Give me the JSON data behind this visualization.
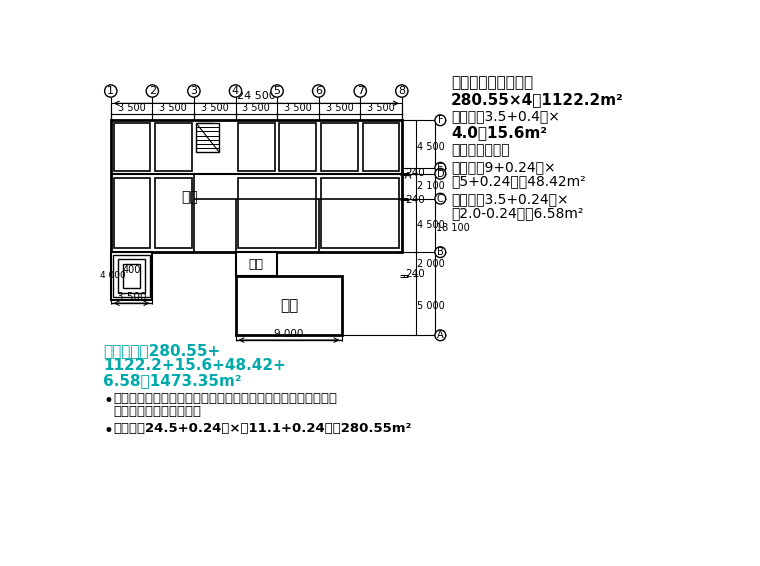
{
  "bg_color": "#ffffff",
  "fig_width": 7.6,
  "fig_height": 5.66,
  "dpi": 100,
  "right_text": {
    "line1": "二～五层建筑面积＝",
    "line2": "280.55×4＝1122.2m²",
    "line3": "雨蓬＝（3.5+0.4）×",
    "line4": "4.0＝15.6m²",
    "line5": "砖混结构部分：",
    "line6": "附楼＝（9+0.24）×",
    "line7": "（5+0.24）＝48.42m²",
    "line8": "通廊＝（3.5+0.24）×",
    "line9": "（2.0-0.24）＝6.58m²"
  },
  "left_text": {
    "cyan1": "建面合计＝280.55+",
    "cyan2": "1122.2+15.6+48.42+",
    "cyan3": "6.58＝1473.35m²",
    "b1l1": "解：因为主楼为框架结构、附楼为砖混结构，所以应分别计算建",
    "b1l2": "筑面积。框架结构部分：",
    "b2": "底层＝（24.5+0.24）×（11.1+0.24）＝280.55m²"
  },
  "teal_color": "#00aaaa"
}
